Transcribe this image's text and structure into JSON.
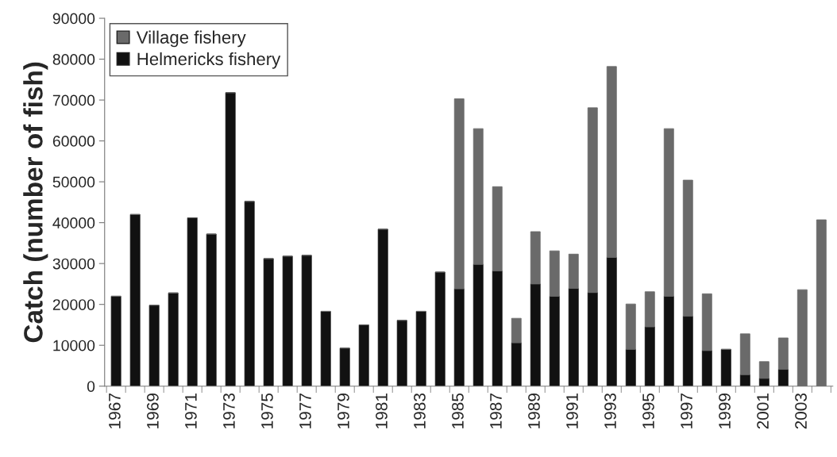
{
  "chart_data": {
    "type": "bar",
    "stacked": true,
    "ylabel": "Catch (number of fish)",
    "categories": [
      "1967",
      null,
      "1969",
      null,
      "1971",
      null,
      "1973",
      null,
      "1975",
      null,
      "1977",
      null,
      "1979",
      null,
      "1981",
      null,
      "1983",
      null,
      "1985",
      null,
      "1987",
      null,
      "1989",
      null,
      "1991",
      null,
      "1993",
      null,
      "1995",
      null,
      "1997",
      null,
      "1999",
      null,
      "2001",
      null,
      "2003",
      null
    ],
    "series": [
      {
        "name": "Helmericks fishery",
        "color": "#111111",
        "values": [
          22000,
          42000,
          19800,
          22800,
          41200,
          37200,
          71800,
          45200,
          31200,
          31800,
          32000,
          18300,
          9300,
          15000,
          38400,
          16100,
          18300,
          27900,
          23800,
          29800,
          28200,
          10600,
          25000,
          22000,
          23900,
          22900,
          31500,
          9000,
          14500,
          22000,
          17100,
          8700,
          9000,
          2800,
          1900,
          4100,
          0,
          0
        ]
      },
      {
        "name": "Village fishery",
        "color": "#6a6a6a",
        "values": [
          0,
          0,
          0,
          0,
          0,
          0,
          0,
          0,
          0,
          0,
          0,
          0,
          0,
          0,
          0,
          0,
          0,
          0,
          46500,
          33200,
          20600,
          6000,
          12800,
          11100,
          8400,
          45200,
          46700,
          11100,
          8600,
          41000,
          33300,
          13900,
          0,
          10000,
          4100,
          7700,
          23600,
          40700
        ]
      }
    ],
    "ylim": [
      0,
      90000
    ],
    "yticks": [
      0,
      10000,
      20000,
      30000,
      40000,
      50000,
      60000,
      70000,
      80000,
      90000
    ],
    "grid": false,
    "legend": "top left"
  }
}
